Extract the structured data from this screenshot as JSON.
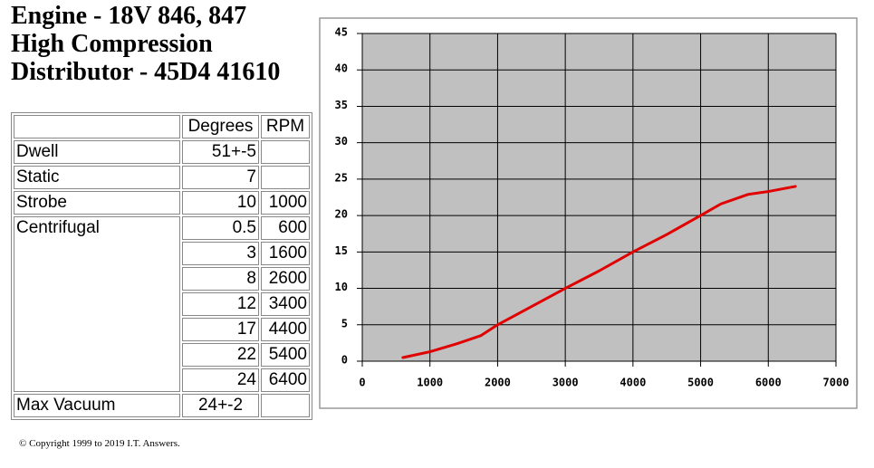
{
  "header": {
    "lines": [
      "Engine - 18V 846, 847",
      "High Compression",
      "Distributor - 45D4 41610"
    ]
  },
  "table": {
    "columns": [
      "Degrees",
      "RPM"
    ],
    "rows": [
      {
        "label": "Dwell",
        "degrees": "51+-5"
      },
      {
        "label": "Static",
        "degrees": 7
      },
      {
        "label": "Strobe",
        "degrees": 10,
        "rpm": 1000
      },
      {
        "label": "Centrifugal",
        "entries": [
          [
            0.5,
            600
          ],
          [
            3,
            1600
          ],
          [
            8,
            2600
          ],
          [
            12,
            3400
          ],
          [
            17,
            4400
          ],
          [
            22,
            5400
          ],
          [
            24,
            6400
          ]
        ]
      },
      {
        "label": "Max Vacuum",
        "degrees": "24+-2"
      }
    ]
  },
  "footer": {
    "copyright": "© Copyright 1999 to 2019 I.T. Answers."
  },
  "chart_data": {
    "type": "line",
    "x": [
      600,
      1000,
      1400,
      1750,
      2000,
      2500,
      3000,
      3500,
      4000,
      4500,
      5000,
      5300,
      5700,
      6000,
      6400
    ],
    "values": [
      0.5,
      1.3,
      2.4,
      3.5,
      5,
      7.5,
      10,
      12.4,
      15,
      17.4,
      20,
      21.6,
      22.9,
      23.3,
      24
    ],
    "color": "#e00000",
    "xlim": [
      0,
      7000
    ],
    "ylim": [
      0,
      45
    ],
    "xticks": [
      0,
      1000,
      2000,
      3000,
      4000,
      5000,
      6000,
      7000
    ],
    "yticks": [
      0,
      5,
      10,
      15,
      20,
      25,
      30,
      35,
      40,
      45
    ],
    "grid": true
  }
}
